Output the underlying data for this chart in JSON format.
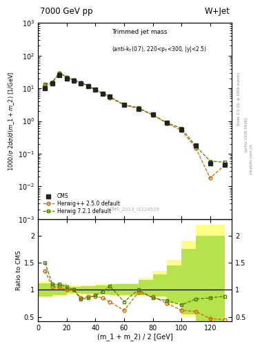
{
  "title_top": "7000 GeV pp",
  "title_right": "W+Jet",
  "annotation": "Trimmed jet mass (anti-k_{T}(0.7), 220<p_{T}<300, |y|<2.5)",
  "watermark": "CMS_2013_I1224539",
  "ylabel_main": "1000/σ 2dσ/d(m_1 + m_2) [1/GeV]",
  "ylabel_ratio": "Ratio to CMS",
  "xlabel": "(m_1 + m_2) / 2 [GeV]",
  "cms_x": [
    5,
    10,
    15,
    20,
    25,
    30,
    35,
    40,
    45,
    50,
    60,
    70,
    80,
    90,
    100,
    110,
    120,
    130
  ],
  "cms_y": [
    10.0,
    14.0,
    25.0,
    20.0,
    17.0,
    14.0,
    11.5,
    9.0,
    7.0,
    5.5,
    3.2,
    2.4,
    1.6,
    0.9,
    0.55,
    0.18,
    0.05,
    0.045
  ],
  "herwig250_x": [
    5,
    10,
    15,
    20,
    25,
    30,
    35,
    40,
    45,
    50,
    60,
    70,
    80,
    90,
    100,
    110,
    120,
    130
  ],
  "herwig250_y": [
    12.0,
    14.5,
    30.0,
    22.0,
    18.0,
    15.0,
    11.5,
    9.0,
    7.0,
    5.2,
    3.1,
    2.4,
    1.55,
    0.85,
    0.52,
    0.15,
    0.018,
    0.045
  ],
  "herwig721_x": [
    5,
    10,
    15,
    20,
    25,
    30,
    35,
    40,
    45,
    50,
    60,
    70,
    80,
    90,
    100,
    110,
    120,
    130
  ],
  "herwig721_y": [
    13.5,
    15.5,
    30.0,
    22.0,
    18.0,
    15.0,
    12.0,
    9.2,
    7.2,
    5.6,
    3.2,
    2.55,
    1.55,
    0.88,
    0.6,
    0.17,
    0.06,
    0.055
  ],
  "ratio250_y": [
    1.35,
    1.05,
    1.05,
    1.0,
    1.0,
    0.85,
    0.87,
    0.88,
    0.85,
    0.78,
    0.62,
    0.95,
    0.87,
    0.75,
    0.62,
    0.6,
    0.47,
    0.45
  ],
  "ratio721_y": [
    1.5,
    1.1,
    1.1,
    1.05,
    1.0,
    0.82,
    0.85,
    0.9,
    0.96,
    1.07,
    0.78,
    1.0,
    0.85,
    0.8,
    0.72,
    0.83,
    0.85,
    0.88
  ],
  "band_x_edges": [
    0,
    10,
    20,
    30,
    40,
    50,
    60,
    70,
    80,
    90,
    100,
    110,
    130
  ],
  "band250_lo": [
    0.85,
    0.88,
    0.92,
    0.92,
    0.9,
    0.88,
    0.88,
    0.88,
    0.85,
    0.72,
    0.5,
    0.35,
    0.2
  ],
  "band250_hi": [
    1.15,
    1.12,
    1.08,
    1.08,
    1.1,
    1.12,
    1.12,
    1.22,
    1.35,
    1.55,
    1.9,
    2.2,
    2.5
  ],
  "band721_lo": [
    0.88,
    0.9,
    0.94,
    0.93,
    0.92,
    0.9,
    0.9,
    0.9,
    0.88,
    0.76,
    0.55,
    0.4,
    0.25
  ],
  "band721_hi": [
    1.12,
    1.1,
    1.06,
    1.07,
    1.08,
    1.1,
    1.1,
    1.18,
    1.28,
    1.45,
    1.75,
    2.0,
    2.3
  ],
  "color_cms": "#222222",
  "color_250": "#cc6600",
  "color_721": "#4d7a00",
  "color_band250": "#ffff88",
  "color_band721": "#aadd44",
  "xlim": [
    0,
    135
  ],
  "ylim_main": [
    0.001,
    1000.0
  ],
  "ylim_ratio": [
    0.42,
    2.3
  ],
  "ratio_yticks": [
    0.5,
    1.0,
    1.5,
    2.0
  ],
  "ratio_yticklabels": [
    "0.5",
    "1",
    "1.5",
    "2"
  ]
}
